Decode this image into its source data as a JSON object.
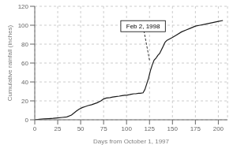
{
  "chart_data": {
    "type": "line",
    "title": "",
    "xlabel": "Days from October 1, 1997",
    "ylabel": "Cumulative rainfall (inches)",
    "x": [
      0,
      5,
      10,
      15,
      20,
      25,
      30,
      35,
      40,
      45,
      48,
      52,
      55,
      58,
      62,
      65,
      68,
      72,
      75,
      78,
      82,
      85,
      88,
      92,
      95,
      98,
      100,
      103,
      105,
      108,
      110,
      113,
      115,
      118,
      120,
      122,
      124,
      126,
      128,
      130,
      132,
      134,
      136,
      138,
      140,
      142,
      144,
      146,
      148,
      150,
      155,
      160,
      165,
      170,
      175,
      180,
      185,
      190,
      195,
      200,
      205
    ],
    "values": [
      0,
      0.5,
      1,
      1.2,
      1.5,
      2,
      2.5,
      3,
      5,
      9,
      11,
      13,
      14,
      15,
      16,
      17,
      18,
      20,
      22,
      23,
      23.5,
      24,
      24.5,
      25,
      25.5,
      26,
      26,
      26.5,
      27,
      27.5,
      27.5,
      28,
      28,
      28.5,
      32,
      38,
      44,
      52,
      58,
      63,
      65,
      68,
      70,
      74,
      78,
      82,
      84,
      85,
      86,
      87,
      90,
      93,
      95,
      97,
      99,
      100,
      101,
      102,
      103,
      104,
      105
    ],
    "color": "#1a1a1a",
    "xlim": [
      0,
      210
    ],
    "ylim": [
      0,
      120
    ],
    "xticks": [
      0,
      25,
      50,
      75,
      100,
      125,
      150,
      175,
      200
    ],
    "yticks": [
      0,
      20,
      40,
      60,
      80,
      100,
      120
    ],
    "grid": true,
    "annotations": [
      {
        "text": "Feb 2, 1998",
        "x": 125,
        "y": 63,
        "text_x": 118,
        "text_y": 99
      }
    ]
  }
}
